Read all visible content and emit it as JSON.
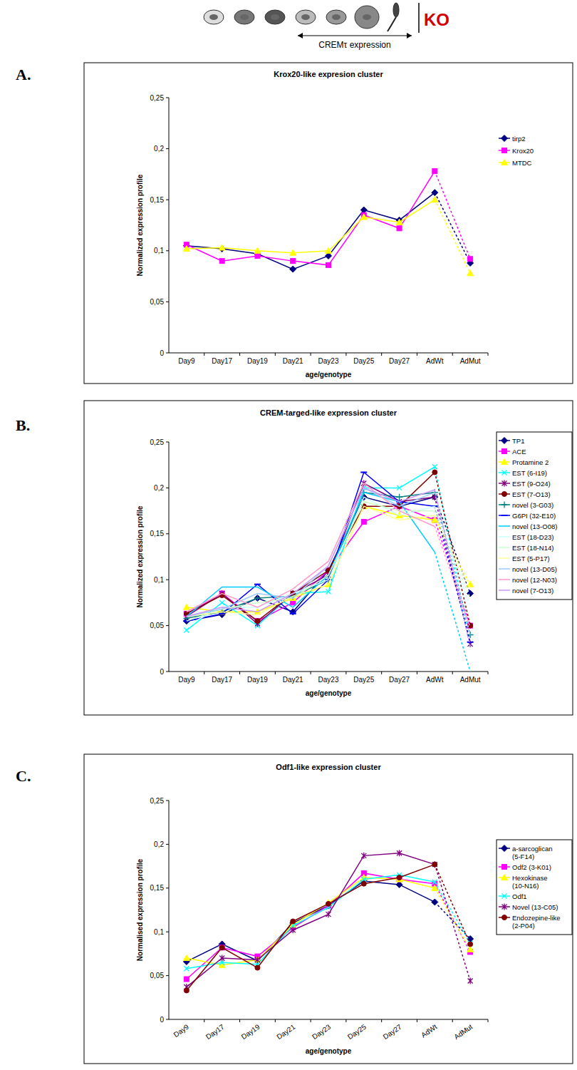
{
  "header": {
    "stage_label": "KO",
    "arrow_label": "CREMτ expression"
  },
  "panel_labels": [
    "A.",
    "B.",
    "C."
  ],
  "chart_data": [
    {
      "type": "line",
      "title": "Krox20-like  expresion  cluster",
      "x_label": "age/genotype",
      "y_label": "Normalized expression profile",
      "categories": [
        "Day9",
        "Day17",
        "Day19",
        "Day21",
        "Day23",
        "Day25",
        "Day27",
        "AdWt",
        "AdMut"
      ],
      "ylim": [
        0,
        0.25
      ],
      "yticks": [
        0,
        {
          "value": 0.05,
          "label": "0,05"
        },
        {
          "value": 0.1,
          "label": "0,1"
        },
        {
          "value": 0.15,
          "label": "0,15"
        },
        {
          "value": 0.2,
          "label": "0,2"
        },
        {
          "value": 0.25,
          "label": "0,25"
        }
      ],
      "grid": false,
      "legend": "right",
      "series": [
        {
          "name": "tirp2",
          "color": "#000080",
          "marker": "diamond",
          "values": [
            0.105,
            0.102,
            0.097,
            0.082,
            0.095,
            0.14,
            0.13,
            0.157,
            0.088
          ]
        },
        {
          "name": "Krox20",
          "color": "#ff00ff",
          "marker": "square",
          "values": [
            0.106,
            0.09,
            0.095,
            0.09,
            0.086,
            0.135,
            0.122,
            0.178,
            0.092
          ]
        },
        {
          "name": "MTDC",
          "color": "#ffff00",
          "marker": "triangle",
          "values": [
            0.102,
            0.103,
            0.1,
            0.098,
            0.1,
            0.133,
            0.128,
            0.15,
            0.078
          ]
        }
      ]
    },
    {
      "type": "line",
      "title": "CREM-targed-like expression cluster",
      "x_label": "age/genotype",
      "y_label": "Normalized expression profile",
      "categories": [
        "Day9",
        "Day17",
        "Day19",
        "Day21",
        "Day23",
        "Day25",
        "Day27",
        "AdWt",
        "AdMut"
      ],
      "ylim": [
        0,
        0.25
      ],
      "yticks": [
        0,
        {
          "value": 0.05,
          "label": "0,05"
        },
        {
          "value": 0.1,
          "label": "0,1"
        },
        {
          "value": 0.15,
          "label": "0,15"
        },
        {
          "value": 0.2,
          "label": "0,2"
        },
        {
          "value": 0.25,
          "label": "0,25"
        }
      ],
      "grid": false,
      "legend": "right",
      "series": [
        {
          "name": "TP1",
          "color": "#000080",
          "marker": "diamond",
          "values": [
            0.055,
            0.062,
            0.08,
            0.065,
            0.11,
            0.19,
            0.18,
            0.19,
            0.085
          ]
        },
        {
          "name": "ACE",
          "color": "#ff00ff",
          "marker": "square",
          "values": [
            0.063,
            0.085,
            0.055,
            0.075,
            0.11,
            0.163,
            0.18,
            0.165,
            0.05
          ]
        },
        {
          "name": "Protamine 2",
          "color": "#ffff00",
          "marker": "triangle",
          "values": [
            0.07,
            0.065,
            0.065,
            0.08,
            0.095,
            0.18,
            0.17,
            0.165,
            0.095
          ]
        },
        {
          "name": "EST (6-I19)",
          "color": "#00ffff",
          "marker": "x",
          "values": [
            0.045,
            0.075,
            0.05,
            0.085,
            0.087,
            0.2,
            0.2,
            0.223,
            0.03
          ]
        },
        {
          "name": "EST (9-O24)",
          "color": "#800080",
          "marker": "asterisk",
          "values": [
            0.06,
            0.085,
            0.052,
            0.085,
            0.105,
            0.205,
            0.185,
            0.19,
            0.03
          ]
        },
        {
          "name": "EST (7-O13)",
          "color": "#800000",
          "marker": "circle",
          "values": [
            0.063,
            0.083,
            0.055,
            0.085,
            0.11,
            0.18,
            0.18,
            0.217,
            0.05
          ]
        },
        {
          "name": "novel (3-G03)",
          "color": "#008080",
          "marker": "plus",
          "values": [
            0.058,
            0.065,
            0.08,
            0.082,
            0.1,
            0.195,
            0.19,
            0.195,
            0.04
          ]
        },
        {
          "name": "G6PI (32-E10)",
          "color": "#0000ff",
          "marker": "dash",
          "values": [
            0.055,
            0.063,
            0.095,
            0.063,
            0.1,
            0.217,
            0.185,
            0.18,
            0.032
          ]
        },
        {
          "name": "novel (13-O08)",
          "color": "#00ccff",
          "marker": "none",
          "values": [
            0.06,
            0.092,
            0.092,
            0.07,
            0.105,
            0.195,
            0.185,
            0.13,
            0
          ]
        },
        {
          "name": "EST (18-D23)",
          "color": "#ccffff",
          "marker": "none",
          "values": [
            0.05,
            0.07,
            0.07,
            0.085,
            0.1,
            0.19,
            0.17,
            0.18,
            0.07
          ]
        },
        {
          "name": "EST (18-N14)",
          "color": "#ccffcc",
          "marker": "none",
          "values": [
            0.055,
            0.068,
            0.075,
            0.08,
            0.105,
            0.185,
            0.175,
            0.175,
            0.08
          ]
        },
        {
          "name": "EST (5-P17)",
          "color": "#ffff99",
          "marker": "none",
          "values": [
            0.06,
            0.065,
            0.062,
            0.082,
            0.095,
            0.18,
            0.165,
            0.17,
            0.09
          ]
        },
        {
          "name": "novel (13-D05)",
          "color": "#99ccff",
          "marker": "none",
          "values": [
            0.06,
            0.068,
            0.085,
            0.08,
            0.115,
            0.2,
            0.18,
            0.195,
            0.04
          ]
        },
        {
          "name": "novel (12-N03)",
          "color": "#ff99cc",
          "marker": "none",
          "values": [
            0.065,
            0.085,
            0.07,
            0.09,
            0.12,
            0.205,
            0.175,
            0.158,
            0.048
          ]
        },
        {
          "name": "novel (7-O13)",
          "color": "#cc99ff",
          "marker": "none",
          "values": [
            0.06,
            0.07,
            0.065,
            0.085,
            0.115,
            0.2,
            0.185,
            0.198,
            0.027
          ]
        }
      ]
    },
    {
      "type": "line",
      "title": "Odf1-like expression cluster",
      "x_label": "age/genotype",
      "y_label": "Normalised expression profile",
      "categories": [
        "Day9",
        "Day17",
        "Day19",
        "Day21",
        "Day23",
        "Day25",
        "Day27",
        "AdWt",
        "AdMut"
      ],
      "ylim": [
        0,
        0.25
      ],
      "yticks": [
        0,
        {
          "value": 0.05,
          "label": "0,05"
        },
        {
          "value": 0.1,
          "label": "0,1"
        },
        {
          "value": 0.15,
          "label": "0,15"
        },
        {
          "value": 0.2,
          "label": "0,2"
        },
        {
          "value": 0.25,
          "label": "0,25"
        }
      ],
      "grid": false,
      "legend": "right",
      "series": [
        {
          "name": "a-sarcoglican (5-F14)",
          "color": "#000080",
          "marker": "diamond",
          "values": [
            0.066,
            0.086,
            0.067,
            0.11,
            0.13,
            0.158,
            0.154,
            0.134,
            0.092
          ]
        },
        {
          "name": "Odf2 (3-K01)",
          "color": "#ff00ff",
          "marker": "square",
          "values": [
            0.046,
            0.082,
            0.072,
            0.105,
            0.13,
            0.167,
            0.16,
            0.155,
            0.077
          ]
        },
        {
          "name": "Hexokinase (10-N16)",
          "color": "#ffff00",
          "marker": "triangle",
          "values": [
            0.07,
            0.062,
            0.068,
            0.108,
            0.133,
            0.162,
            0.16,
            0.15,
            0.08
          ]
        },
        {
          "name": "Odf1",
          "color": "#00ffff",
          "marker": "x",
          "values": [
            0.058,
            0.065,
            0.063,
            0.107,
            0.128,
            0.16,
            0.165,
            0.157,
            0.087
          ]
        },
        {
          "name": "Novel (13-C05)",
          "color": "#800080",
          "marker": "asterisk",
          "values": [
            0.037,
            0.07,
            0.068,
            0.102,
            0.12,
            0.187,
            0.19,
            0.177,
            0.044
          ]
        },
        {
          "name": "Endozepine-like (2-P04)",
          "color": "#800000",
          "marker": "circle",
          "values": [
            0.033,
            0.082,
            0.059,
            0.112,
            0.132,
            0.155,
            0.162,
            0.177,
            0.086
          ]
        }
      ]
    }
  ]
}
